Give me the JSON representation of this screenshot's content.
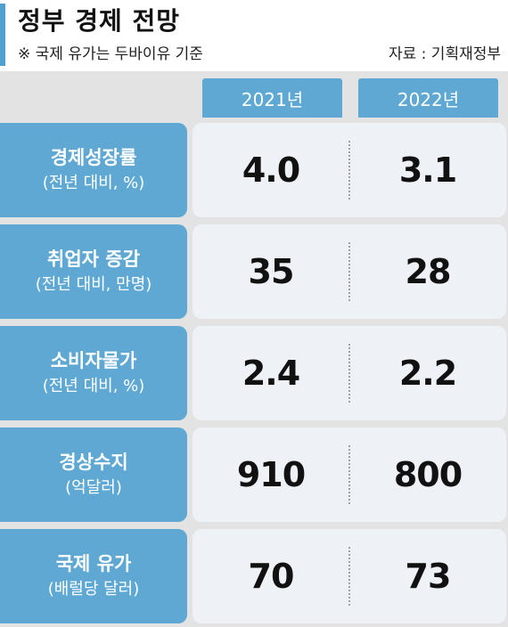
{
  "header": {
    "title": "정부 경제 전망",
    "note": "※ 국제 유가는 두바이유 기준",
    "source": "자료 : 기획재정부"
  },
  "colors": {
    "accent": "#5ea8d3",
    "panel": "#e3e3e3",
    "cell": "#eef2f7"
  },
  "chart_data": {
    "type": "table",
    "columns": [
      "2021년",
      "2022년"
    ],
    "rows": [
      {
        "label": "경제성장률",
        "sublabel": "(전년 대비, %)",
        "values": [
          "4.0",
          "3.1"
        ]
      },
      {
        "label": "취업자 증감",
        "sublabel": "(전년 대비, 만명)",
        "values": [
          "35",
          "28"
        ]
      },
      {
        "label": "소비자물가",
        "sublabel": "(전년 대비, %)",
        "values": [
          "2.4",
          "2.2"
        ]
      },
      {
        "label": "경상수지",
        "sublabel": "(억달러)",
        "values": [
          "910",
          "800"
        ]
      },
      {
        "label": "국제 유가",
        "sublabel": "(배럴당 달러)",
        "values": [
          "70",
          "73"
        ]
      }
    ]
  }
}
